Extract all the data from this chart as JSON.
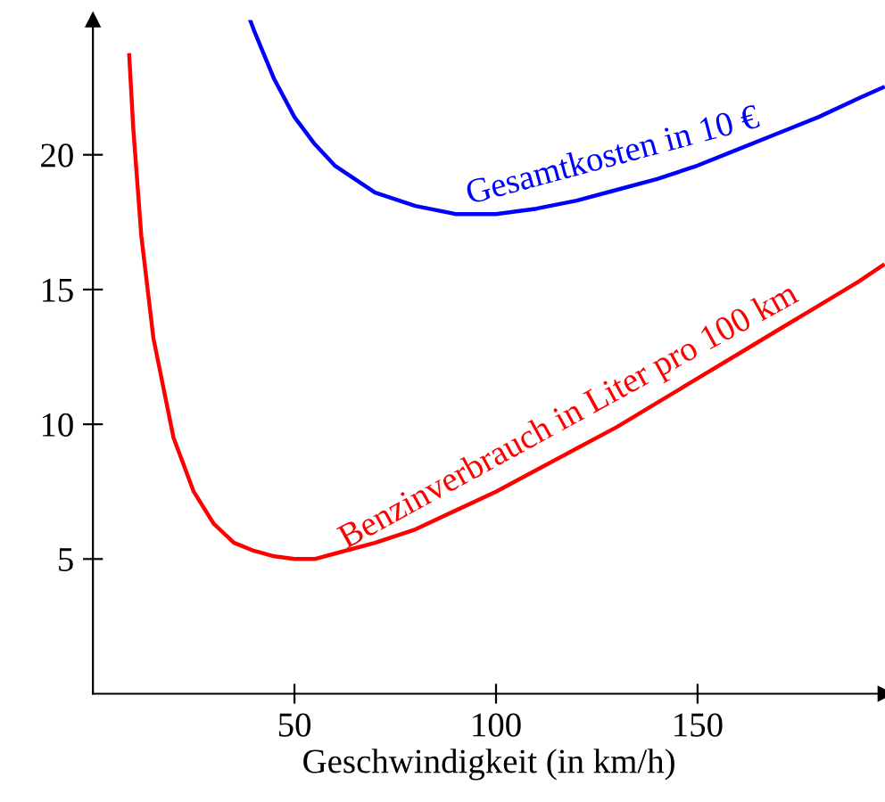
{
  "chart_data": {
    "type": "line",
    "xlabel": "Geschwindigkeit (in km/h)",
    "xlim": [
      0,
      196.5
    ],
    "ylim": [
      0,
      25
    ],
    "xticks": [
      50,
      100,
      150
    ],
    "yticks": [
      5,
      10,
      15,
      20
    ],
    "grid": false,
    "legend": false,
    "marker": "none",
    "line_style": "solid",
    "series": [
      {
        "color": "#0000ff",
        "x": [
          39,
          40,
          45,
          50,
          55,
          60,
          70,
          80,
          90,
          95,
          100,
          110,
          120,
          130,
          140,
          150,
          160,
          170,
          180,
          190,
          196
        ],
        "values": [
          25.0,
          24.6,
          22.8,
          21.4,
          20.4,
          19.6,
          18.6,
          18.1,
          17.8,
          17.8,
          17.8,
          18.0,
          18.3,
          18.7,
          19.1,
          19.6,
          20.2,
          20.8,
          21.4,
          22.1,
          22.5
        ]
      },
      {
        "color": "#ff0000",
        "x": [
          9,
          10,
          12,
          15,
          20,
          25,
          30,
          35,
          40,
          45,
          50,
          55,
          60,
          70,
          80,
          90,
          100,
          110,
          120,
          130,
          140,
          150,
          160,
          170,
          180,
          190,
          196
        ],
        "values": [
          23.7,
          21.0,
          17.0,
          13.2,
          9.5,
          7.5,
          6.3,
          5.6,
          5.3,
          5.1,
          5.0,
          5.0,
          5.2,
          5.6,
          6.1,
          6.8,
          7.5,
          8.3,
          9.1,
          9.9,
          10.8,
          11.7,
          12.6,
          13.5,
          14.4,
          15.3,
          15.9
        ]
      }
    ],
    "annotations": [
      {
        "text": "Gesamtkosten in 10 €",
        "x": 130,
        "y": 18.7
      },
      {
        "text": "Benzinverbrauch in Liter pro 100 km",
        "x": 120,
        "y": 9.1
      }
    ]
  }
}
